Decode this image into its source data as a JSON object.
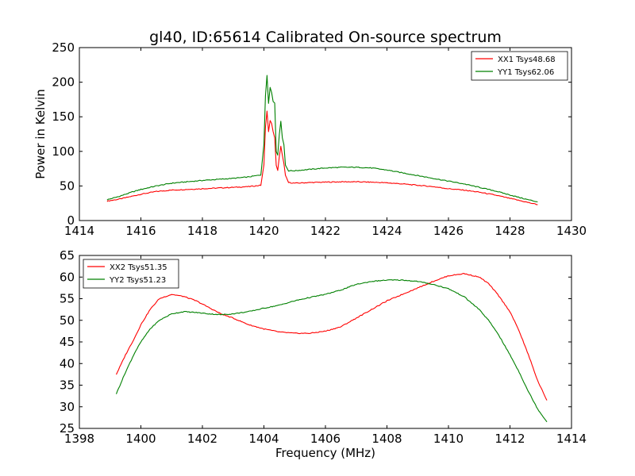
{
  "figure": {
    "title": "gl40, ID:65614 Calibrated On-source spectrum"
  },
  "chart_data": [
    {
      "type": "line",
      "title": "gl40, ID:65614 Calibrated On-source spectrum",
      "xlabel": "",
      "ylabel": "Power in Kelvin",
      "xlim": [
        1414,
        1430
      ],
      "ylim": [
        0,
        250
      ],
      "xticks": [
        "1414",
        "1416",
        "1418",
        "1420",
        "1422",
        "1424",
        "1426",
        "1428",
        "1430"
      ],
      "yticks": [
        "0",
        "50",
        "100",
        "150",
        "200",
        "250"
      ],
      "grid": false,
      "legend": "top-right",
      "series": [
        {
          "name": "XX1 Tsys48.68",
          "color": "#ff0000",
          "x": [
            1414.9,
            1415.3,
            1415.7,
            1416.0,
            1416.5,
            1417.0,
            1417.5,
            1418.0,
            1418.5,
            1419.0,
            1419.5,
            1419.9,
            1420.0,
            1420.05,
            1420.1,
            1420.15,
            1420.2,
            1420.25,
            1420.3,
            1420.35,
            1420.4,
            1420.45,
            1420.5,
            1420.55,
            1420.6,
            1420.65,
            1420.7,
            1420.8,
            1421.0,
            1421.5,
            1422.0,
            1422.5,
            1423.0,
            1423.5,
            1424.0,
            1424.5,
            1425.0,
            1425.5,
            1426.0,
            1426.5,
            1427.0,
            1427.5,
            1428.0,
            1428.5,
            1428.9
          ],
          "y": [
            28,
            31,
            35,
            38,
            42,
            44,
            45,
            46,
            47,
            48,
            49,
            51,
            80,
            135,
            158,
            128,
            145,
            140,
            128,
            120,
            80,
            72,
            92,
            107,
            95,
            82,
            65,
            55,
            54,
            55,
            55.5,
            56,
            56,
            55.5,
            54.5,
            53,
            51,
            49,
            46,
            44,
            41,
            37,
            32,
            27,
            23
          ]
        },
        {
          "name": "YY1 Tsys62.06",
          "color": "#008000",
          "x": [
            1414.9,
            1415.3,
            1415.7,
            1416.0,
            1416.5,
            1417.0,
            1417.5,
            1418.0,
            1418.5,
            1419.0,
            1419.5,
            1419.9,
            1420.0,
            1420.05,
            1420.1,
            1420.15,
            1420.2,
            1420.25,
            1420.3,
            1420.35,
            1420.4,
            1420.45,
            1420.5,
            1420.55,
            1420.6,
            1420.65,
            1420.7,
            1420.8,
            1421.0,
            1421.5,
            1422.0,
            1422.5,
            1423.0,
            1423.5,
            1424.0,
            1424.5,
            1425.0,
            1425.5,
            1426.0,
            1426.5,
            1427.0,
            1427.5,
            1428.0,
            1428.5,
            1428.9
          ],
          "y": [
            30,
            35,
            41,
            45,
            50,
            54,
            56,
            58,
            59.5,
            61,
            63,
            66,
            110,
            180,
            210,
            170,
            193,
            185,
            172,
            170,
            100,
            95,
            125,
            143,
            120,
            110,
            80,
            72,
            72,
            74,
            76,
            77,
            77,
            76,
            73,
            69,
            65,
            61,
            57,
            53,
            48,
            43,
            37,
            31,
            27
          ]
        }
      ]
    },
    {
      "type": "line",
      "title": "",
      "xlabel": "Frequency (MHz)",
      "ylabel": "",
      "xlim": [
        1398,
        1414
      ],
      "ylim": [
        25,
        65
      ],
      "xticks": [
        "1398",
        "1400",
        "1402",
        "1404",
        "1406",
        "1408",
        "1410",
        "1412",
        "1414"
      ],
      "yticks": [
        "25",
        "30",
        "35",
        "40",
        "45",
        "50",
        "55",
        "60",
        "65"
      ],
      "grid": false,
      "legend": "top-left",
      "series": [
        {
          "name": "XX2 Tsys51.35",
          "color": "#ff0000",
          "x": [
            1399.2,
            1399.5,
            1399.8,
            1400.0,
            1400.3,
            1400.6,
            1401.0,
            1401.4,
            1401.8,
            1402.2,
            1402.6,
            1403.0,
            1403.5,
            1404.0,
            1404.5,
            1405.0,
            1405.5,
            1406.0,
            1406.5,
            1407.0,
            1407.5,
            1408.0,
            1408.5,
            1409.0,
            1409.5,
            1410.0,
            1410.5,
            1411.0,
            1411.3,
            1411.6,
            1412.0,
            1412.3,
            1412.6,
            1412.9,
            1413.2
          ],
          "y": [
            37.5,
            42,
            46,
            49,
            52.5,
            55,
            56,
            55.5,
            54.5,
            53,
            51.5,
            50.5,
            49,
            48,
            47.3,
            47,
            47,
            47.5,
            48.5,
            50.5,
            52.5,
            54.5,
            56,
            57.5,
            59,
            60.3,
            60.8,
            60,
            58.5,
            56,
            52,
            47.5,
            42,
            36,
            31.5
          ]
        },
        {
          "name": "YY2 Tsys51.23",
          "color": "#008000",
          "x": [
            1399.2,
            1399.5,
            1399.8,
            1400.0,
            1400.3,
            1400.6,
            1401.0,
            1401.4,
            1401.8,
            1402.2,
            1402.6,
            1403.0,
            1403.5,
            1404.0,
            1404.5,
            1405.0,
            1405.5,
            1406.0,
            1406.5,
            1407.0,
            1407.5,
            1408.0,
            1408.5,
            1409.0,
            1409.5,
            1410.0,
            1410.5,
            1411.0,
            1411.3,
            1411.6,
            1412.0,
            1412.3,
            1412.6,
            1412.9,
            1413.2
          ],
          "y": [
            33,
            38,
            42.5,
            45,
            48,
            50,
            51.5,
            52,
            51.8,
            51.5,
            51.3,
            51.5,
            52,
            52.8,
            53.5,
            54.5,
            55.3,
            56,
            57,
            58.3,
            59,
            59.3,
            59.3,
            59,
            58.3,
            57.3,
            55.5,
            52.5,
            50,
            47,
            42,
            38,
            33.5,
            29.5,
            26.5
          ]
        }
      ]
    }
  ]
}
